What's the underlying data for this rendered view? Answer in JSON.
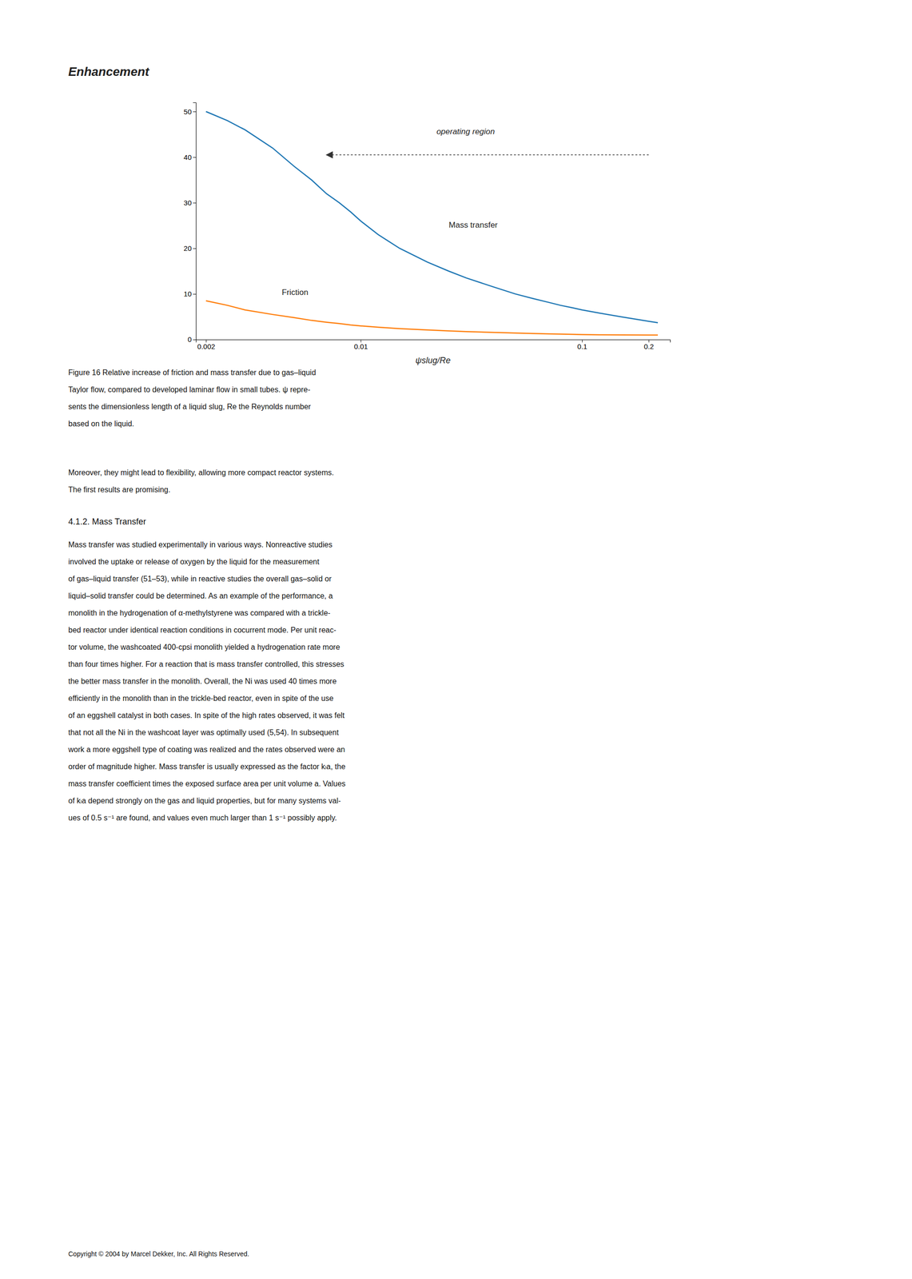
{
  "chart_data": {
    "type": "line",
    "title": "Enhancement",
    "xlabel": "ψslug/Re",
    "log": "x",
    "grid": false,
    "x": [
      0.002,
      0.0025,
      0.003,
      0.004,
      0.005,
      0.006,
      0.007,
      0.008,
      0.009,
      0.01,
      0.012,
      0.015,
      0.02,
      0.025,
      0.03,
      0.04,
      0.05,
      0.06,
      0.07,
      0.08,
      0.09,
      0.1,
      0.12,
      0.15,
      0.2,
      0.22
    ],
    "xlim": [
      0.0018,
      0.25
    ],
    "xticks": [
      0.002,
      0.01,
      0.1,
      0.2
    ],
    "ylim": [
      0,
      52
    ],
    "yticks": [
      0,
      10,
      20,
      30,
      40,
      50
    ],
    "series": [
      {
        "values": [
          50,
          48,
          46,
          42,
          38,
          35,
          32,
          30,
          28,
          26,
          23,
          20,
          17,
          15,
          13.5,
          11.5,
          10,
          9,
          8.2,
          7.5,
          7.0,
          6.5,
          5.8,
          5.0,
          4.0,
          3.7
        ]
      },
      {
        "values": [
          8.5,
          7.5,
          6.5,
          5.5,
          4.8,
          4.2,
          3.8,
          3.5,
          3.2,
          3.0,
          2.7,
          2.4,
          2.1,
          1.9,
          1.75,
          1.55,
          1.42,
          1.32,
          1.25,
          1.2,
          1.15,
          1.1,
          1.05,
          1.02,
          1.0,
          0.98
        ]
      }
    ],
    "annotations": [
      {
        "text": "Mass transfer",
        "x": 0.025,
        "y": 25
      },
      {
        "text": "Friction",
        "x": 0.0044,
        "y": 10.2
      },
      {
        "text": "operating region",
        "x": 0.022,
        "y": 45.5,
        "arrow": {
          "x_from": 0.2,
          "x_to": 0.007,
          "y": 40.5
        }
      }
    ]
  },
  "caption_lines": [
    "Figure 16   Relative increase of friction and mass transfer due to gas–liquid",
    "Taylor flow, compared to developed laminar flow in small tubes. ψ repre-",
    "sents the dimensionless length of a liquid slug, Re the Reynolds number",
    "based on the liquid."
  ],
  "body1_lines": [
    "Moreover, they might lead to flexibility, allowing more compact reactor systems.",
    "The first results are promising."
  ],
  "section_header": "4.1.2.    Mass Transfer",
  "body2_lines": [
    "Mass transfer was studied experimentally in various ways. Nonreactive studies",
    "involved the uptake or release of oxygen by the liquid for the measurement",
    "of gas–liquid transfer (51–53), while in reactive studies the overall gas–solid or",
    "liquid–solid transfer could be determined. As an example of the performance, a",
    "monolith in the hydrogenation of α-methylstyrene was compared with a trickle-",
    "bed reactor under identical reaction conditions in cocurrent mode. Per unit reac-",
    "tor volume, the washcoated 400-cpsi monolith yielded a hydrogenation rate more",
    "than four times higher. For a reaction that is mass transfer controlled, this stresses",
    "the better mass transfer in the monolith. Overall, the Ni was used 40 times more",
    "efficiently in the monolith than in the trickle-bed reactor, even in spite of the use",
    "of an eggshell catalyst in both cases. In spite of the high rates observed, it was felt",
    "that not all the Ni in the washcoat layer was optimally used (5,54). In subsequent",
    "work a more eggshell type of coating was realized and the rates observed were an",
    "order of magnitude higher. Mass transfer is usually expressed as the factor kₗa, the",
    "mass transfer coefficient times the exposed surface area per unit volume a. Values",
    "of kₗa depend strongly on the gas and liquid properties, but for many systems val-",
    "ues of 0.5 s⁻¹ are found, and values even much larger than 1 s⁻¹ possibly apply."
  ],
  "copyright": "Copyright © 2004 by Marcel Dekker, Inc. All Rights Reserved."
}
